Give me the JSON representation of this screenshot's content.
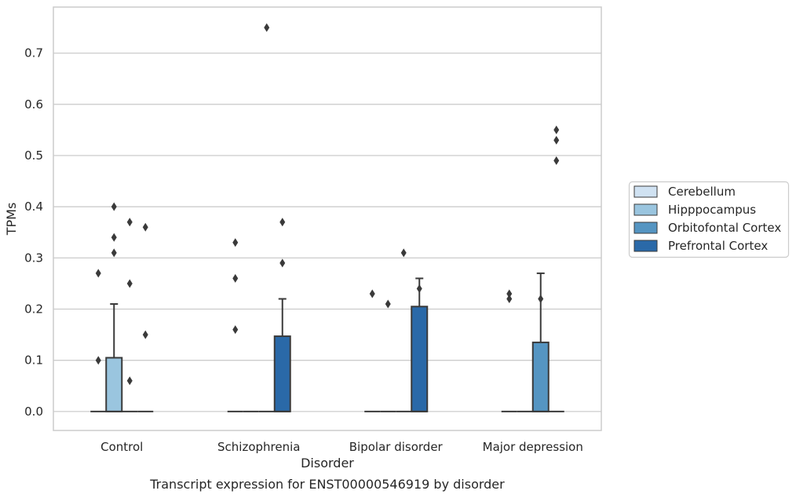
{
  "chart_data": {
    "type": "box",
    "caption": "Transcript expression for ENST00000546919 by disorder",
    "xlabel": "Disorder",
    "ylabel": "TPMs",
    "ylim": [
      -0.037,
      0.79
    ],
    "yticks": [
      0.0,
      0.1,
      0.2,
      0.3,
      0.4,
      0.5,
      0.6,
      0.7
    ],
    "ytick_labels": [
      "0.0",
      "0.1",
      "0.2",
      "0.3",
      "0.4",
      "0.5",
      "0.6",
      "0.7"
    ],
    "grid": true,
    "legend_position": "right",
    "categories": [
      "Control",
      "Schizophrenia",
      "Bipolar disorder",
      "Major depression"
    ],
    "series": [
      {
        "name": "Cerebellum",
        "color": "#d0e2f2",
        "boxes": [
          {
            "q1": 0,
            "median": 0,
            "q3": 0,
            "whisker_low": 0,
            "whisker_high": 0,
            "outliers": [
              0.1,
              0.27
            ]
          },
          {
            "q1": 0,
            "median": 0,
            "q3": 0,
            "whisker_low": 0,
            "whisker_high": 0,
            "outliers": [
              0.16,
              0.26,
              0.33
            ]
          },
          {
            "q1": 0,
            "median": 0,
            "q3": 0,
            "whisker_low": 0,
            "whisker_high": 0,
            "outliers": [
              0.23
            ]
          },
          {
            "q1": 0,
            "median": 0,
            "q3": 0,
            "whisker_low": 0,
            "whisker_high": 0,
            "outliers": [
              0.22,
              0.23
            ]
          }
        ]
      },
      {
        "name": "Hipppocampus",
        "color": "#9ac5df",
        "boxes": [
          {
            "q1": 0,
            "median": 0,
            "q3": 0.105,
            "whisker_low": 0,
            "whisker_high": 0.21,
            "outliers": [
              0.31,
              0.34,
              0.4
            ]
          },
          {
            "q1": 0,
            "median": 0,
            "q3": 0,
            "whisker_low": 0,
            "whisker_high": 0,
            "outliers": []
          },
          {
            "q1": 0,
            "median": 0,
            "q3": 0,
            "whisker_low": 0,
            "whisker_high": 0,
            "outliers": [
              0.21
            ]
          },
          {
            "q1": 0,
            "median": 0,
            "q3": 0,
            "whisker_low": 0,
            "whisker_high": 0,
            "outliers": []
          }
        ]
      },
      {
        "name": "Orbitofontal Cortex",
        "color": "#5595c2",
        "boxes": [
          {
            "q1": 0,
            "median": 0,
            "q3": 0,
            "whisker_low": 0,
            "whisker_high": 0,
            "outliers": [
              0.06,
              0.25,
              0.37
            ]
          },
          {
            "q1": 0,
            "median": 0,
            "q3": 0,
            "whisker_low": 0,
            "whisker_high": 0,
            "outliers": [
              0.75
            ]
          },
          {
            "q1": 0,
            "median": 0,
            "q3": 0,
            "whisker_low": 0,
            "whisker_high": 0,
            "outliers": [
              0.31
            ]
          },
          {
            "q1": 0,
            "median": 0,
            "q3": 0.135,
            "whisker_low": 0,
            "whisker_high": 0.27,
            "outliers": [
              0.22
            ]
          }
        ]
      },
      {
        "name": "Prefrontal Cortex",
        "color": "#2a69a8",
        "boxes": [
          {
            "q1": 0,
            "median": 0,
            "q3": 0,
            "whisker_low": 0,
            "whisker_high": 0,
            "outliers": [
              0.15,
              0.36
            ]
          },
          {
            "q1": 0,
            "median": 0,
            "q3": 0.147,
            "whisker_low": 0,
            "whisker_high": 0.22,
            "outliers": [
              0.29,
              0.37
            ]
          },
          {
            "q1": 0,
            "median": 0,
            "q3": 0.205,
            "whisker_low": 0,
            "whisker_high": 0.26,
            "outliers": [
              0.24
            ]
          },
          {
            "q1": 0,
            "median": 0,
            "q3": 0,
            "whisker_low": 0,
            "whisker_high": 0,
            "outliers": [
              0.49,
              0.53,
              0.55
            ]
          }
        ]
      }
    ]
  }
}
